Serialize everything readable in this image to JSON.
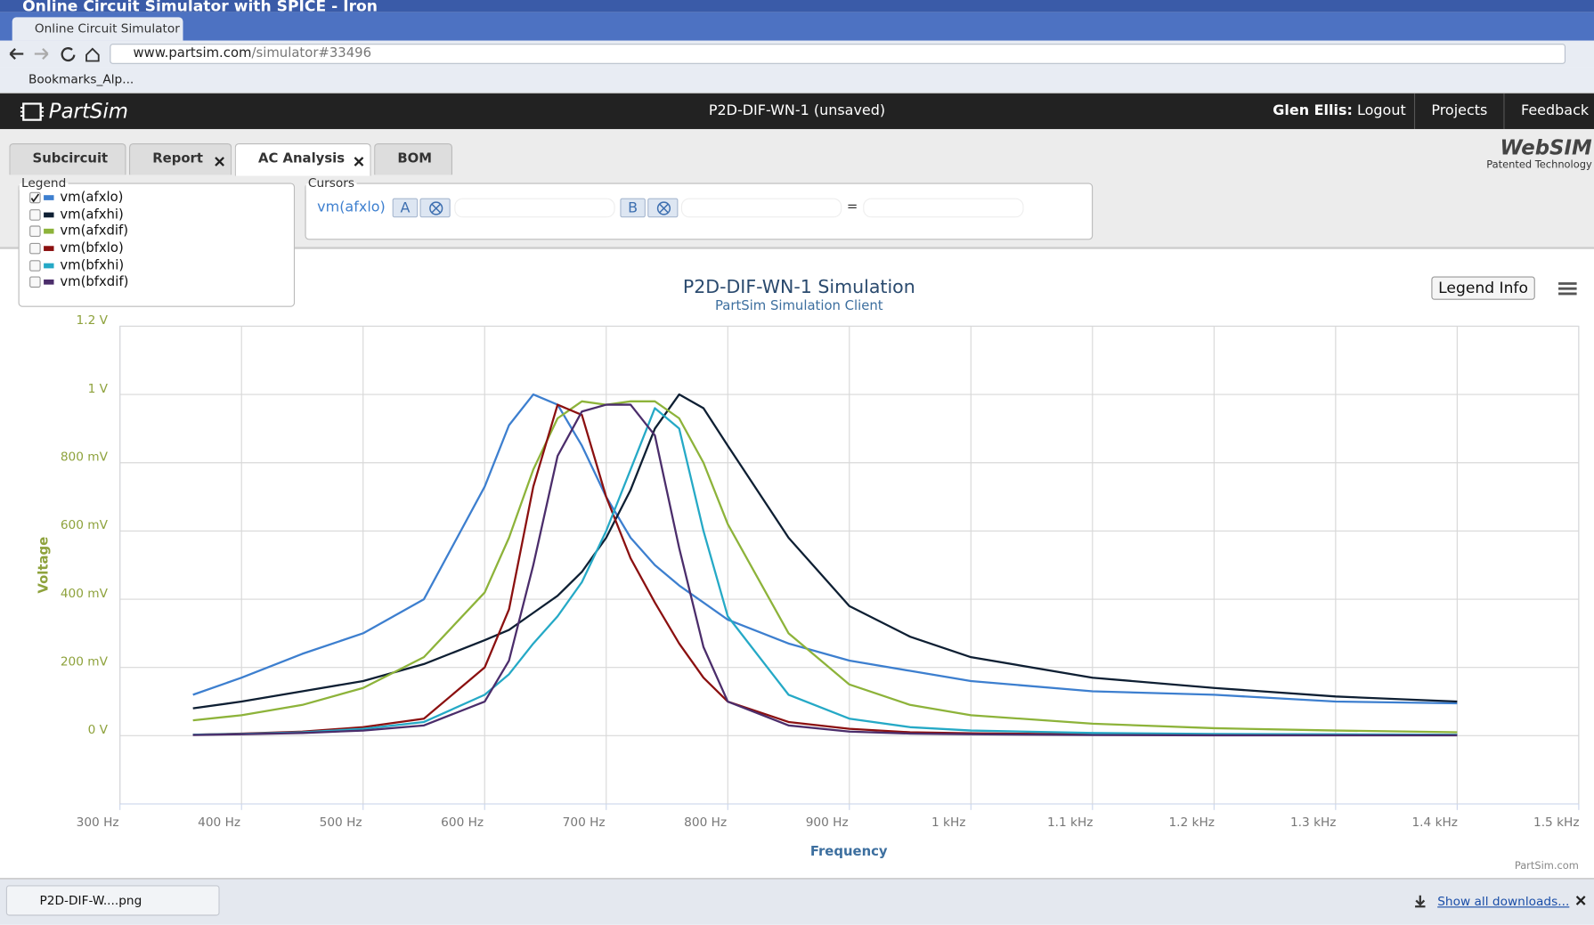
{
  "window": {
    "title": "Online Circuit Simulator with SPICE - Iron"
  },
  "browser": {
    "tab": "Online Circuit Simulator",
    "url_host": "www.partsim.com",
    "url_path": "/simulator#33496",
    "bookmark": "Bookmarks_Alp..."
  },
  "app": {
    "logo": "PartSim",
    "project": "P2D-DIF-WN-1 (unsaved)",
    "user": "Glen Ellis:",
    "logout": "Logout",
    "nav": [
      "Projects",
      "Feedback"
    ],
    "tabs": [
      "Subcircuit",
      "Report",
      "AC Analysis",
      "BOM"
    ],
    "closable": [
      false,
      true,
      true,
      false
    ],
    "active_tab": 2,
    "brand": "WebSIM",
    "brand_note": "Patented Technology"
  },
  "legend": {
    "title": "Legend",
    "checked": [
      true,
      false,
      false,
      false,
      false,
      false
    ]
  },
  "cursors": {
    "title": "Cursors",
    "signal": "vm(afxlo)",
    "a": "A",
    "b": "B",
    "equals": "="
  },
  "chart_data": {
    "type": "line",
    "title": "P2D-DIF-WN-1 Simulation",
    "subtitle": "PartSim Simulation Client",
    "xlabel": "Frequency",
    "ylabel": "Voltage",
    "legend_button": "Legend Info",
    "credit": "PartSim.com",
    "grid": true,
    "x": [
      360,
      400,
      450,
      500,
      550,
      600,
      620,
      640,
      660,
      680,
      700,
      720,
      740,
      760,
      780,
      800,
      850,
      900,
      950,
      1000,
      1100,
      1200,
      1300,
      1400
    ],
    "series": [
      {
        "name": "vm(afxlo)",
        "color": "#3d7fcf",
        "values": [
          0.12,
          0.17,
          0.24,
          0.3,
          0.4,
          0.73,
          0.91,
          1.0,
          0.97,
          0.85,
          0.7,
          0.58,
          0.5,
          0.44,
          0.39,
          0.34,
          0.27,
          0.22,
          0.19,
          0.16,
          0.13,
          0.12,
          0.1,
          0.095
        ]
      },
      {
        "name": "vm(afxhi)",
        "color": "#0e1f33",
        "values": [
          0.08,
          0.1,
          0.13,
          0.16,
          0.21,
          0.28,
          0.31,
          0.36,
          0.41,
          0.48,
          0.58,
          0.72,
          0.9,
          1.0,
          0.96,
          0.85,
          0.58,
          0.38,
          0.29,
          0.23,
          0.17,
          0.14,
          0.115,
          0.1
        ]
      },
      {
        "name": "vm(afxdif)",
        "color": "#8db33a",
        "values": [
          0.045,
          0.06,
          0.09,
          0.14,
          0.23,
          0.42,
          0.58,
          0.78,
          0.93,
          0.98,
          0.97,
          0.98,
          0.98,
          0.93,
          0.8,
          0.62,
          0.3,
          0.15,
          0.09,
          0.06,
          0.035,
          0.022,
          0.015,
          0.01
        ]
      },
      {
        "name": "vm(bfxlo)",
        "color": "#8b1010",
        "values": [
          0.003,
          0.006,
          0.012,
          0.025,
          0.05,
          0.2,
          0.37,
          0.73,
          0.97,
          0.94,
          0.7,
          0.52,
          0.39,
          0.27,
          0.17,
          0.1,
          0.04,
          0.02,
          0.01,
          0.007,
          0.004,
          0.003,
          0.002,
          0.002
        ]
      },
      {
        "name": "vm(bfxhi)",
        "color": "#25a9c6",
        "values": [
          0.003,
          0.005,
          0.01,
          0.02,
          0.04,
          0.12,
          0.18,
          0.27,
          0.35,
          0.45,
          0.6,
          0.78,
          0.96,
          0.9,
          0.6,
          0.35,
          0.12,
          0.05,
          0.025,
          0.015,
          0.008,
          0.005,
          0.004,
          0.003
        ]
      },
      {
        "name": "vm(bfxdif)",
        "color": "#4b2d6b",
        "values": [
          0.002,
          0.004,
          0.008,
          0.015,
          0.03,
          0.1,
          0.22,
          0.5,
          0.82,
          0.95,
          0.97,
          0.97,
          0.88,
          0.55,
          0.26,
          0.1,
          0.03,
          0.012,
          0.006,
          0.004,
          0.002,
          0.001,
          0.001,
          0.001
        ]
      }
    ],
    "xlim": [
      300,
      1500
    ],
    "ylim": [
      -0.2,
      1.2
    ],
    "xticks": [
      {
        "value": 300,
        "label": "300 Hz"
      },
      {
        "value": 400,
        "label": "400 Hz"
      },
      {
        "value": 500,
        "label": "500 Hz"
      },
      {
        "value": 600,
        "label": "600 Hz"
      },
      {
        "value": 700,
        "label": "700 Hz"
      },
      {
        "value": 800,
        "label": "800 Hz"
      },
      {
        "value": 900,
        "label": "900 Hz"
      },
      {
        "value": 1000,
        "label": "1 kHz"
      },
      {
        "value": 1100,
        "label": "1.1 kHz"
      },
      {
        "value": 1200,
        "label": "1.2 kHz"
      },
      {
        "value": 1300,
        "label": "1.3 kHz"
      },
      {
        "value": 1400,
        "label": "1.4 kHz"
      },
      {
        "value": 1500,
        "label": "1.5 kHz"
      }
    ],
    "yticks": [
      {
        "value": 0,
        "label": "0 V"
      },
      {
        "value": 0.2,
        "label": "200 mV"
      },
      {
        "value": 0.4,
        "label": "400 mV"
      },
      {
        "value": 0.6,
        "label": "600 mV"
      },
      {
        "value": 0.8,
        "label": "800 mV"
      },
      {
        "value": 1,
        "label": "1 V"
      },
      {
        "value": 1.2,
        "label": "1.2 V"
      }
    ]
  },
  "downloads": {
    "file": "P2D-DIF-W....png",
    "show_all": "Show all downloads..."
  }
}
